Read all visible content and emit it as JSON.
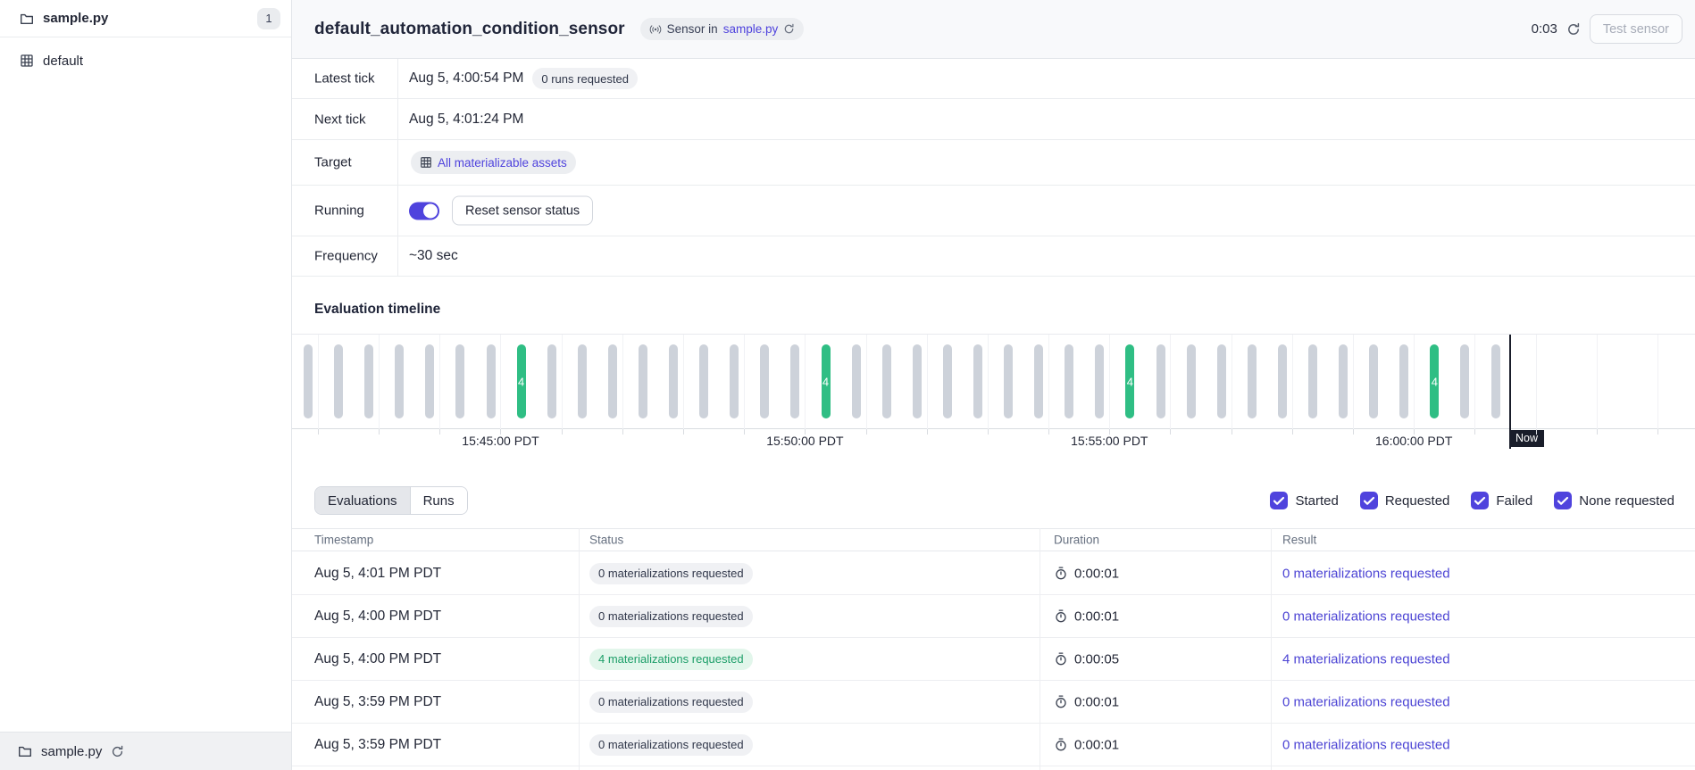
{
  "sidebar": {
    "top_item": {
      "label": "sample.py",
      "count": "1"
    },
    "items": [
      {
        "label": "default"
      }
    ],
    "footer": {
      "label": "sample.py"
    }
  },
  "header": {
    "title": "default_automation_condition_sensor",
    "badge": {
      "prefix": "Sensor in",
      "link": "sample.py"
    },
    "countdown": "0:03",
    "test_button": "Test sensor"
  },
  "details": {
    "rows": [
      {
        "label": "Latest tick",
        "value": "Aug 5, 4:00:54 PM",
        "badge": "0 runs requested"
      },
      {
        "label": "Next tick",
        "value": "Aug 5, 4:01:24 PM"
      },
      {
        "label": "Target",
        "pill": "All materializable assets"
      },
      {
        "label": "Running",
        "toggle": "on",
        "button": "Reset sensor status"
      },
      {
        "label": "Frequency",
        "value": "~30 sec"
      }
    ]
  },
  "timeline": {
    "title": "Evaluation timeline"
  },
  "chart_data": {
    "type": "bar",
    "title": "Evaluation timeline",
    "num_bars": 40,
    "bar_interval": "one evaluation tick every ~30 sec",
    "x_tick_labels": [
      "15:45:00 PDT",
      "15:50:00 PDT",
      "15:55:00 PDT",
      "16:00:00 PDT"
    ],
    "highlighted_bars": [
      {
        "index": 7,
        "value": 4
      },
      {
        "index": 17,
        "value": 4
      },
      {
        "index": 27,
        "value": 4
      },
      {
        "index": 37,
        "value": 4
      }
    ],
    "now_marker_label": "Now",
    "legend_position": "none",
    "grid": "vertical-minor",
    "colors": {
      "bar": "#CDD2DA",
      "highlight": "#2FBE84",
      "now": "#191D2A"
    }
  },
  "tabs": [
    {
      "label": "Evaluations",
      "active": true
    },
    {
      "label": "Runs",
      "active": false
    }
  ],
  "filters": [
    {
      "label": "Started",
      "checked": true
    },
    {
      "label": "Requested",
      "checked": true
    },
    {
      "label": "Failed",
      "checked": true
    },
    {
      "label": "None requested",
      "checked": true
    }
  ],
  "table": {
    "columns": [
      "Timestamp",
      "Status",
      "Duration",
      "Result"
    ],
    "rows": [
      {
        "timestamp": "Aug 5, 4:01 PM PDT",
        "status": "0 materializations requested",
        "status_kind": "gray",
        "duration": "0:00:01",
        "result": "0 materializations requested"
      },
      {
        "timestamp": "Aug 5, 4:00 PM PDT",
        "status": "0 materializations requested",
        "status_kind": "gray",
        "duration": "0:00:01",
        "result": "0 materializations requested"
      },
      {
        "timestamp": "Aug 5, 4:00 PM PDT",
        "status": "4 materializations requested",
        "status_kind": "green",
        "duration": "0:00:05",
        "result": "4 materializations requested"
      },
      {
        "timestamp": "Aug 5, 3:59 PM PDT",
        "status": "0 materializations requested",
        "status_kind": "gray",
        "duration": "0:00:01",
        "result": "0 materializations requested"
      },
      {
        "timestamp": "Aug 5, 3:59 PM PDT",
        "status": "0 materializations requested",
        "status_kind": "gray",
        "duration": "0:00:01",
        "result": "0 materializations requested"
      }
    ]
  }
}
